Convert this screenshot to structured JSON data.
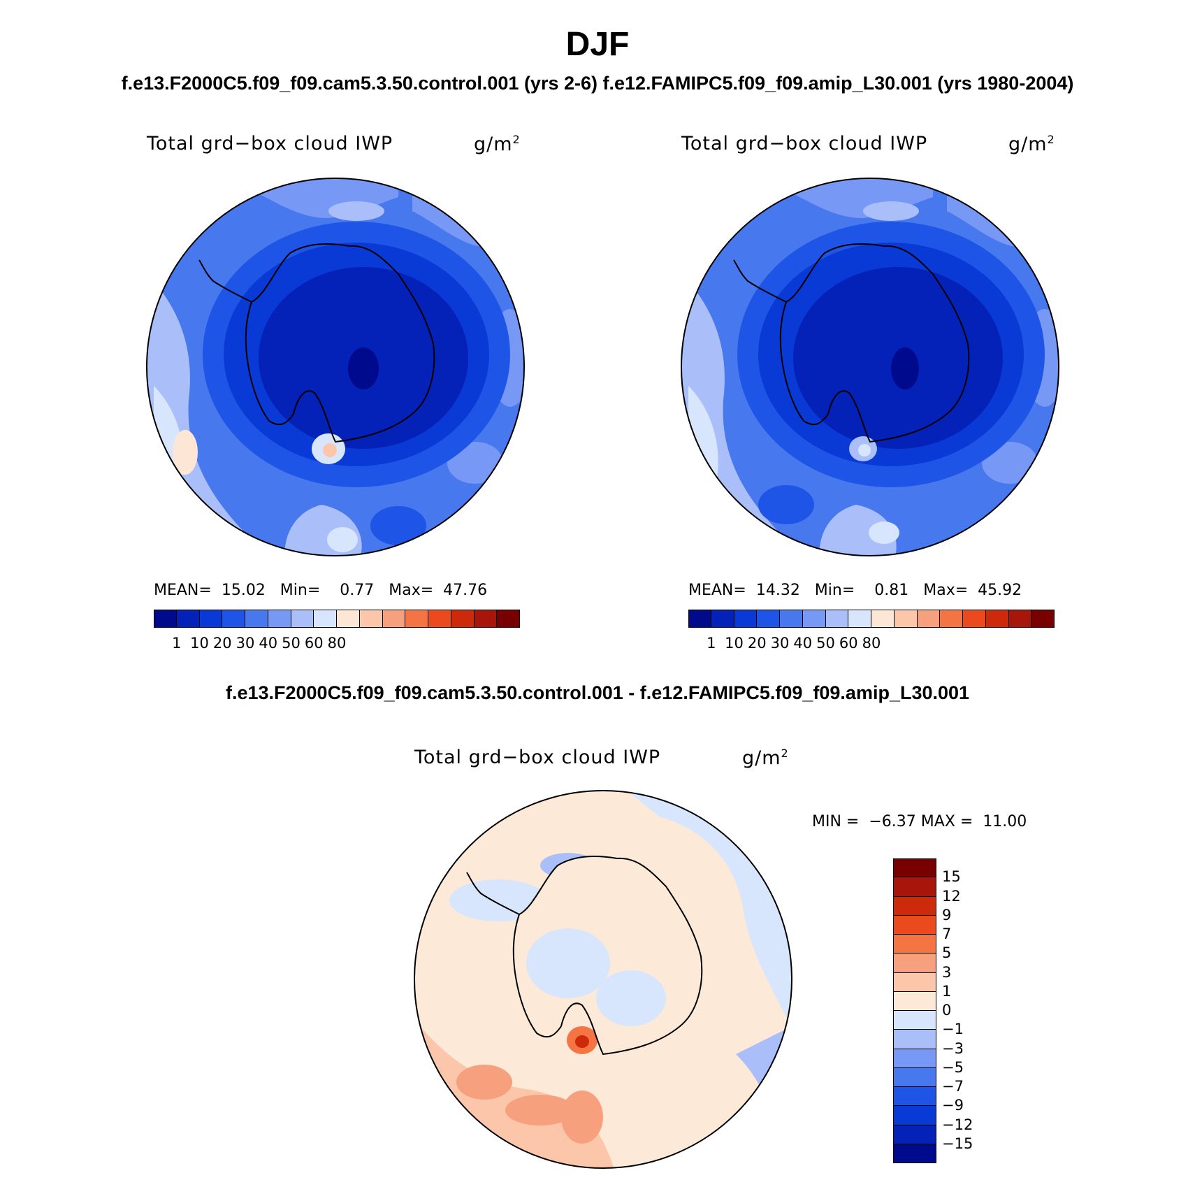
{
  "header": {
    "title": "DJF",
    "subtitle": "f.e13.F2000C5.f09_f09.cam5.3.50.control.001 (yrs 2-6)  f.e12.FAMIPC5.f09_f09.amip_L30.001 (yrs 1980-2004)"
  },
  "colors": {
    "abs_palette": [
      "#000a8c",
      "#0422b8",
      "#0a3ad6",
      "#1f55e6",
      "#4778ee",
      "#7799f5",
      "#aabff9",
      "#d7e6fc",
      "#fde6d6",
      "#fbc6aa",
      "#f7a07e",
      "#f47444",
      "#ea4a1e",
      "#cc2a0a",
      "#a8150a",
      "#790000"
    ],
    "diff_palette": [
      "#000a8c",
      "#0422b8",
      "#0a3ad6",
      "#1f55e6",
      "#4778ee",
      "#7799f5",
      "#aabff9",
      "#d7e6fc",
      "#fde9d8",
      "#fbc6aa",
      "#f7a07e",
      "#f47444",
      "#ea4a1e",
      "#cc2a0a",
      "#a8150a",
      "#790000"
    ]
  },
  "panels": [
    {
      "variable": "Total grd−box cloud IWP",
      "units_base": "g/m",
      "units_exp": "2",
      "stats": {
        "mean_label": "MEAN=",
        "mean": "15.02",
        "min_label": "Min=",
        "min": "0.77",
        "max_label": "Max=",
        "max": "47.76"
      },
      "colorbar_labels": [
        "1",
        "10",
        "20",
        "30",
        "40",
        "50",
        "60",
        "80"
      ]
    },
    {
      "variable": "Total grd−box cloud IWP",
      "units_base": "g/m",
      "units_exp": "2",
      "stats": {
        "mean_label": "MEAN=",
        "mean": "14.32",
        "min_label": "Min=",
        "min": "0.81",
        "max_label": "Max=",
        "max": "45.92"
      },
      "colorbar_labels": [
        "1",
        "10",
        "20",
        "30",
        "40",
        "50",
        "60",
        "80"
      ]
    }
  ],
  "difference": {
    "title": "f.e13.F2000C5.f09_f09.cam5.3.50.control.001 - f.e12.FAMIPC5.f09_f09.amip_L30.001",
    "variable": "Total grd−box cloud IWP",
    "units_base": "g/m",
    "units_exp": "2",
    "stats": {
      "min_label": "MIN =",
      "min": "−6.37",
      "max_label": "MAX =",
      "max": "11.00"
    },
    "colorbar_labels": [
      "15",
      "12",
      "9",
      "7",
      "5",
      "3",
      "1",
      "0",
      "−1",
      "−3",
      "−5",
      "−7",
      "−9",
      "−12",
      "−15"
    ]
  }
}
